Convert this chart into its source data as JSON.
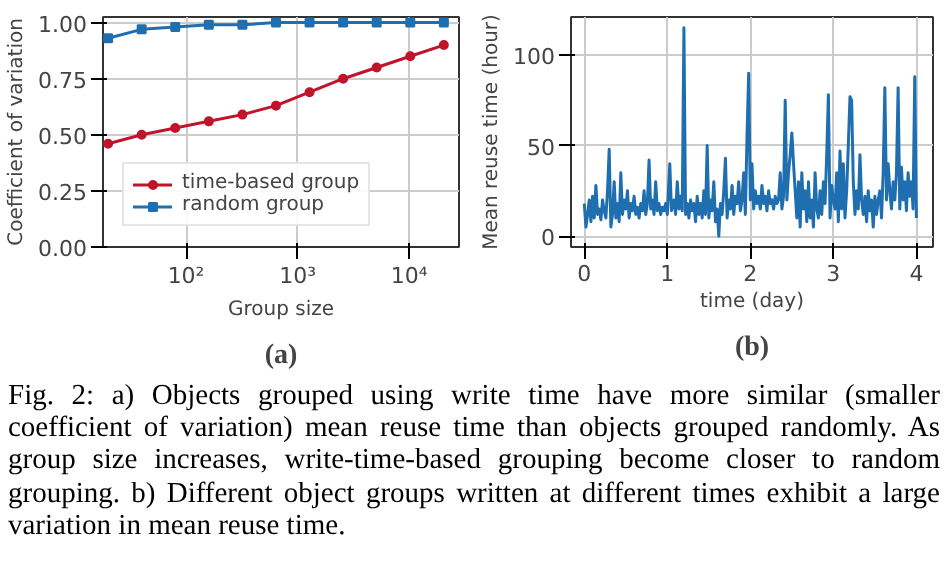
{
  "chart_data": [
    {
      "type": "line",
      "xlabel": "Group size",
      "ylabel": "Coefficient of variation",
      "log": "x",
      "grid": true,
      "legend": "bottom left",
      "line_style": "solid",
      "xlim": [
        18,
        28000
      ],
      "ylim": [
        0,
        1.025
      ],
      "xticks": [
        {
          "value": 100,
          "label": "10²"
        },
        {
          "value": 1000,
          "label": "10³"
        },
        {
          "value": 10000,
          "label": "10⁴"
        }
      ],
      "yticks": [
        {
          "value": 0,
          "label": "0.00"
        },
        {
          "value": 0.25,
          "label": "0.25"
        },
        {
          "value": 0.5,
          "label": "0.50"
        },
        {
          "value": 0.75,
          "label": "0.75"
        },
        {
          "value": 1,
          "label": "1.00"
        }
      ],
      "x": [
        20,
        40,
        80,
        160,
        320,
        640,
        1280,
        2560,
        5120,
        10240,
        20480
      ],
      "series": [
        {
          "name": "time-based group",
          "color": "#c0142c",
          "marker": "circle",
          "values": [
            0.46,
            0.5,
            0.53,
            0.56,
            0.59,
            0.63,
            0.69,
            0.75,
            0.8,
            0.85,
            0.9
          ]
        },
        {
          "name": "random group",
          "color": "#1f6fb0",
          "marker": "square",
          "values": [
            0.93,
            0.97,
            0.98,
            0.99,
            0.99,
            1.0,
            1.0,
            1.0,
            1.0,
            1.0,
            1.0
          ]
        }
      ],
      "annotations": [
        "(a)",
        "Fig. 2: a) Objects grouped using write time have more similar (smaller coefficient of variation) mean reuse time than objects grouped randomly. As group size increases, write-time-based grouping become closer to random grouping. b) Different object groups written at different times exhibit a large variation in mean reuse time."
      ]
    },
    {
      "type": "line",
      "xlabel": "time (day)",
      "ylabel": "Mean reuse time (hour)",
      "grid": true,
      "line_style": "solid",
      "xlim": [
        -0.16,
        4.2
      ],
      "ylim": [
        -6,
        121
      ],
      "xticks": [
        0,
        1,
        2,
        3,
        4
      ],
      "yticks": [
        0,
        50,
        100
      ],
      "x": [
        0.0,
        0.02,
        0.04,
        0.06,
        0.08,
        0.1,
        0.12,
        0.14,
        0.16,
        0.18,
        0.2,
        0.22,
        0.24,
        0.26,
        0.28,
        0.3,
        0.32,
        0.34,
        0.36,
        0.38,
        0.4,
        0.42,
        0.44,
        0.46,
        0.48,
        0.5,
        0.52,
        0.54,
        0.56,
        0.58,
        0.6,
        0.62,
        0.64,
        0.66,
        0.68,
        0.7,
        0.72,
        0.74,
        0.76,
        0.78,
        0.8,
        0.82,
        0.84,
        0.86,
        0.88,
        0.9,
        0.92,
        0.94,
        0.96,
        0.98,
        1.0,
        1.03,
        1.05,
        1.08,
        1.1,
        1.12,
        1.14,
        1.16,
        1.18,
        1.2,
        1.22,
        1.24,
        1.26,
        1.28,
        1.3,
        1.32,
        1.34,
        1.36,
        1.38,
        1.4,
        1.42,
        1.44,
        1.46,
        1.48,
        1.5,
        1.52,
        1.54,
        1.56,
        1.58,
        1.6,
        1.62,
        1.64,
        1.66,
        1.68,
        1.7,
        1.72,
        1.74,
        1.76,
        1.78,
        1.8,
        1.82,
        1.84,
        1.86,
        1.88,
        1.9,
        1.92,
        1.94,
        1.96,
        1.98,
        2.0,
        2.02,
        2.04,
        2.06,
        2.08,
        2.1,
        2.12,
        2.14,
        2.16,
        2.18,
        2.2,
        2.22,
        2.24,
        2.26,
        2.28,
        2.3,
        2.32,
        2.34,
        2.36,
        2.38,
        2.4,
        2.42,
        2.44,
        2.46,
        2.48,
        2.5,
        2.52,
        2.54,
        2.56,
        2.58,
        2.6,
        2.62,
        2.64,
        2.66,
        2.68,
        2.7,
        2.72,
        2.74,
        2.76,
        2.78,
        2.8,
        2.82,
        2.84,
        2.86,
        2.88,
        2.9,
        2.92,
        2.94,
        2.96,
        2.98,
        3.0,
        3.02,
        3.04,
        3.06,
        3.08,
        3.1,
        3.12,
        3.14,
        3.16,
        3.18,
        3.2,
        3.22,
        3.24,
        3.26,
        3.28,
        3.3,
        3.32,
        3.34,
        3.36,
        3.38,
        3.4,
        3.42,
        3.44,
        3.46,
        3.48,
        3.5,
        3.52,
        3.54,
        3.56,
        3.58,
        3.6,
        3.62,
        3.64,
        3.66,
        3.68,
        3.7,
        3.72,
        3.74,
        3.76,
        3.78,
        3.8,
        3.82,
        3.84,
        3.86,
        3.88,
        3.9,
        3.92,
        3.94,
        3.96,
        3.98,
        4.0
      ],
      "series": [
        {
          "color": "#1f6fb0",
          "values": [
            18,
            5,
            12,
            20,
            8,
            22,
            10,
            28,
            12,
            15,
            9,
            20,
            14,
            10,
            25,
            48,
            5,
            12,
            30,
            10,
            18,
            8,
            35,
            12,
            20,
            15,
            25,
            10,
            18,
            14,
            22,
            12,
            16,
            10,
            18,
            14,
            25,
            12,
            18,
            42,
            15,
            20,
            12,
            30,
            14,
            18,
            12,
            16,
            14,
            18,
            12,
            40,
            14,
            20,
            12,
            30,
            15,
            22,
            14,
            115,
            12,
            18,
            10,
            20,
            14,
            18,
            8,
            22,
            12,
            18,
            10,
            25,
            12,
            50,
            10,
            20,
            14,
            30,
            8,
            15,
            0,
            18,
            12,
            25,
            43,
            10,
            20,
            15,
            28,
            12,
            22,
            18,
            30,
            14,
            20,
            35,
            12,
            55,
            90,
            20,
            40,
            15,
            25,
            18,
            22,
            15,
            28,
            18,
            22,
            14,
            25,
            18,
            20,
            15,
            22,
            18,
            20,
            35,
            15,
            22,
            75,
            20,
            35,
            45,
            57,
            40,
            25,
            10,
            30,
            5,
            35,
            15,
            25,
            8,
            30,
            10,
            20,
            5,
            35,
            15,
            10,
            25,
            12,
            30,
            18,
            45,
            78,
            10,
            28,
            20,
            15,
            35,
            8,
            47,
            15,
            40,
            10,
            25,
            50,
            77,
            75,
            30,
            12,
            25,
            15,
            45,
            20,
            12,
            22,
            8,
            25,
            14,
            20,
            5,
            22,
            12,
            20,
            25,
            10,
            35,
            82,
            20,
            40,
            25,
            15,
            30,
            20,
            35,
            82,
            15,
            38,
            20,
            30,
            14,
            35,
            22,
            30,
            15,
            88,
            10
          ]
        }
      ],
      "annotations": [
        "(b)"
      ]
    }
  ]
}
